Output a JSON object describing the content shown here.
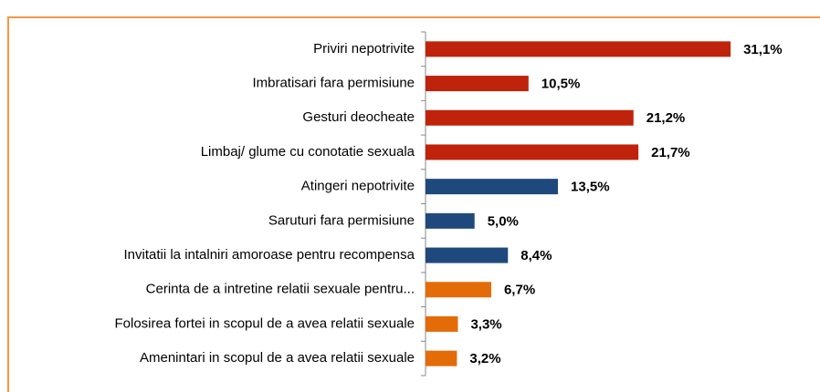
{
  "chart_data": {
    "type": "bar",
    "orientation": "horizontal",
    "categories": [
      "Priviri nepotrivite",
      "Imbratisari fara permisiune",
      "Gesturi deocheate",
      "Limbaj/ glume cu conotatie sexuala",
      "Atingeri nepotrivite",
      "Saruturi fara permisiune",
      "Invitatii la intalniri amoroase pentru recompensa",
      "Cerinta de a intretine relatii sexuale pentru...",
      "Folosirea fortei in scopul de a avea relatii sexuale",
      "Amenintari in scopul de a avea relatii sexuale"
    ],
    "values": [
      31.1,
      10.5,
      21.2,
      21.7,
      13.5,
      5.0,
      8.4,
      6.7,
      3.3,
      3.2
    ],
    "value_labels": [
      "31,1%",
      "10,5%",
      "21,2%",
      "21,7%",
      "13,5%",
      "5,0%",
      "8,4%",
      "6,7%",
      "3,3%",
      "3,2%"
    ],
    "colors": [
      "#c0230b",
      "#c0230b",
      "#c0230b",
      "#c0230b",
      "#1f497d",
      "#1f497d",
      "#1f497d",
      "#e36c09",
      "#e36c09",
      "#e36c09"
    ],
    "xlim": [
      0,
      35
    ]
  }
}
